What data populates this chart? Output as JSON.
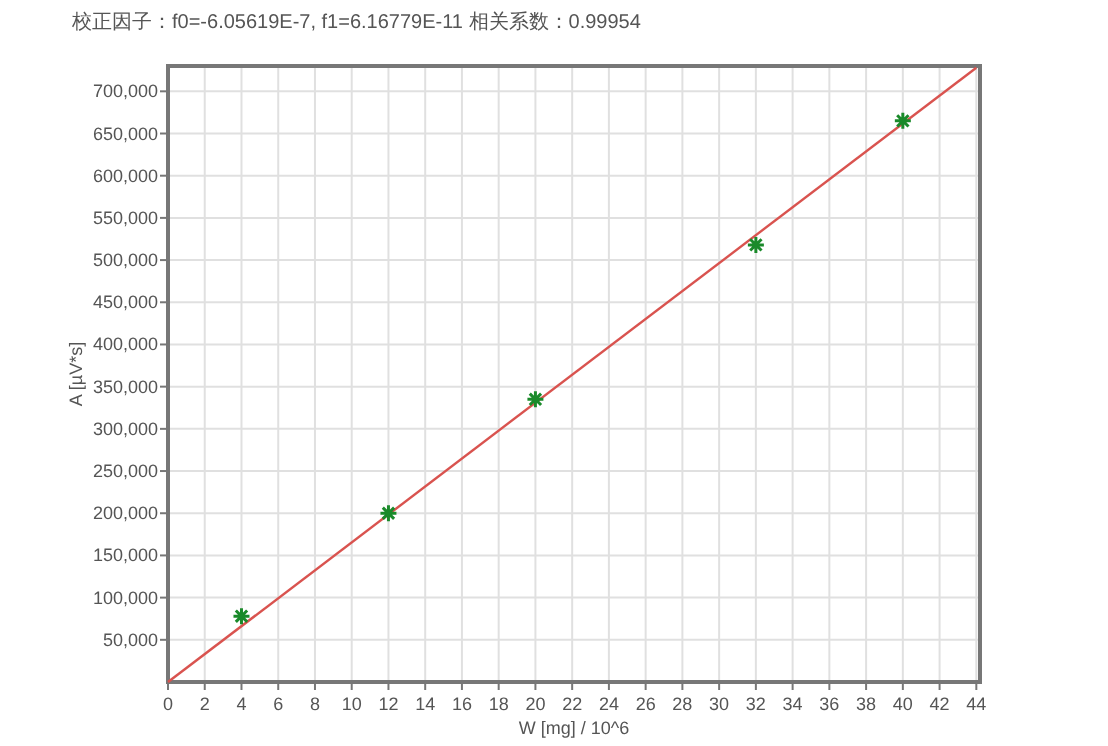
{
  "chart_data": {
    "type": "scatter",
    "title": "校正因子：f0=-6.05619E-7, f1=6.16779E-11   相关系数：0.99954",
    "xlabel": "W [mg] / 10^6",
    "ylabel": "A [µV*s]",
    "xlim": [
      0,
      44.2
    ],
    "ylim": [
      0,
      730000
    ],
    "xticks": [
      0,
      2,
      4,
      6,
      8,
      10,
      12,
      14,
      16,
      18,
      20,
      22,
      24,
      26,
      28,
      30,
      32,
      34,
      36,
      38,
      40,
      42,
      44
    ],
    "yticks": [
      {
        "value": 50000,
        "label": "50,000"
      },
      {
        "value": 100000,
        "label": "100,000"
      },
      {
        "value": 150000,
        "label": "150,000"
      },
      {
        "value": 200000,
        "label": "200,000"
      },
      {
        "value": 250000,
        "label": "250,000"
      },
      {
        "value": 300000,
        "label": "300,000"
      },
      {
        "value": 350000,
        "label": "350,000"
      },
      {
        "value": 400000,
        "label": "400,000"
      },
      {
        "value": 450000,
        "label": "450,000"
      },
      {
        "value": 500000,
        "label": "500,000"
      },
      {
        "value": 550000,
        "label": "550,000"
      },
      {
        "value": 600000,
        "label": "600,000"
      },
      {
        "value": 650000,
        "label": "650,000"
      },
      {
        "value": 700000,
        "label": "700,000"
      }
    ],
    "grid": true,
    "series": [
      {
        "type": "line",
        "marker": "none",
        "color": "#d9534f",
        "x": [
          0,
          44
        ],
        "values": [
          0,
          728000
        ]
      },
      {
        "marker": "cross",
        "color": "#1a8a2a",
        "x": [
          4,
          12,
          20,
          32,
          40
        ],
        "values": [
          78000,
          200000,
          335000,
          518000,
          665000
        ]
      }
    ]
  }
}
